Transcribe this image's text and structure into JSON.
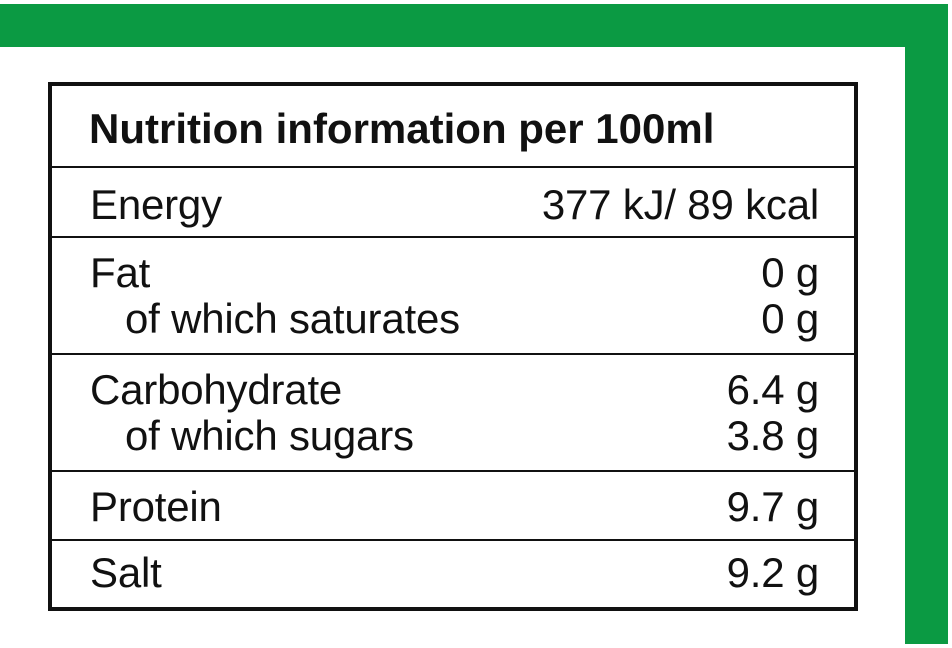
{
  "colors": {
    "accent": "#0b9a43",
    "border": "#111111",
    "background": "#ffffff"
  },
  "title": "Nutrition information per 100ml",
  "rows": [
    {
      "label": "Energy",
      "value": "377 kJ/ 89 kcal"
    },
    {
      "label": "Fat",
      "value": "0 g"
    },
    {
      "label": "of which saturates",
      "value": "0 g"
    },
    {
      "label": "Carbohydrate",
      "value": "6.4 g"
    },
    {
      "label": "of which sugars",
      "value": "3.8 g"
    },
    {
      "label": "Protein",
      "value": "9.7 g"
    },
    {
      "label": "Salt",
      "value": "9.2 g"
    }
  ]
}
